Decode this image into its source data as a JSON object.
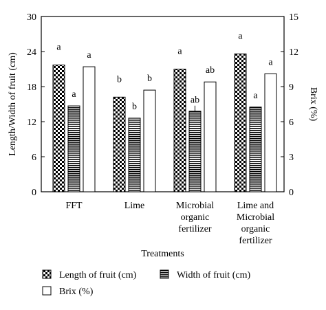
{
  "chart_data": {
    "type": "bar",
    "xlabel": "Treatments",
    "ylabel_left": "Length/Width of fruit (cm)",
    "ylabel_right": "Brix (%)",
    "ylim_left": [
      0,
      30
    ],
    "ylim_right": [
      0,
      15
    ],
    "yticks_left": [
      "0",
      "6",
      "12",
      "18",
      "24",
      "30"
    ],
    "yticks_right": [
      "0",
      "3",
      "6",
      "9",
      "12",
      "15"
    ],
    "categories": [
      [
        "FFT"
      ],
      [
        "Lime"
      ],
      [
        "Microbial",
        "organic",
        "fertilizer"
      ],
      [
        "Lime and",
        "Microbial",
        "organic",
        "fertilizer"
      ]
    ],
    "series": [
      {
        "name": "Length of fruit (cm)",
        "axis": "left",
        "pattern": "checker",
        "values": [
          21.7,
          16.2,
          21.0,
          23.6
        ],
        "letters": [
          "a",
          "b",
          "a",
          "a"
        ]
      },
      {
        "name": "Width of fruit (cm)",
        "axis": "left",
        "pattern": "hlines",
        "values": [
          14.7,
          12.6,
          13.8,
          14.5
        ],
        "letters": [
          "a",
          "b",
          "ab",
          "a"
        ]
      },
      {
        "name": "Brix (%)",
        "axis": "right",
        "pattern": "open",
        "values": [
          10.7,
          8.7,
          9.4,
          10.1
        ],
        "letters": [
          "a",
          "b",
          "ab",
          "a"
        ]
      }
    ]
  }
}
